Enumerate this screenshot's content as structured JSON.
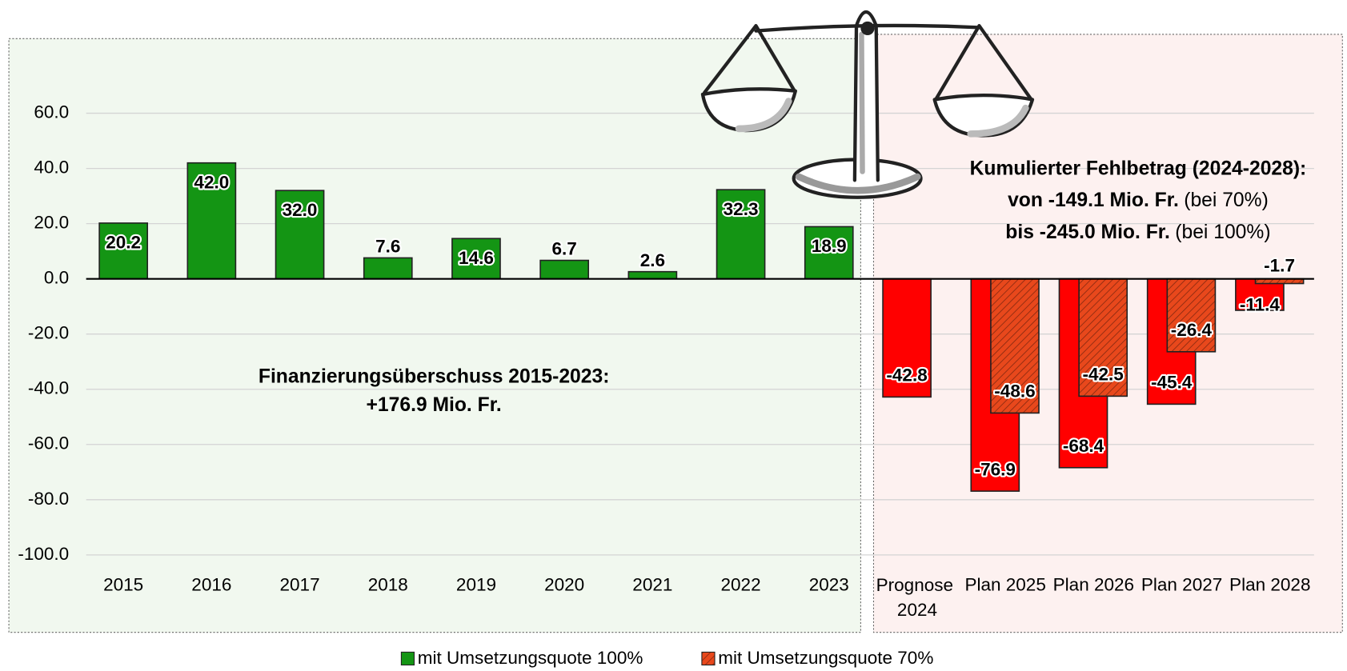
{
  "chart_data": {
    "type": "bar",
    "categories": [
      "2015",
      "2016",
      "2017",
      "2018",
      "2019",
      "2020",
      "2021",
      "2022",
      "2023",
      "Prognose 2024",
      "Plan 2025",
      "Plan 2026",
      "Plan 2027",
      "Plan 2028"
    ],
    "series": [
      {
        "name": "mit Umsetzungsquote 100%",
        "color": "#149514",
        "negative_color": "#ff0000",
        "values": [
          20.2,
          42.0,
          32.0,
          7.6,
          14.6,
          6.7,
          2.6,
          32.3,
          18.9,
          -42.8,
          -76.9,
          -68.4,
          -45.4,
          -11.4
        ],
        "value_labels": [
          "20.2",
          "42.0",
          "32.0",
          "7.6",
          "14.6",
          "6.7",
          "2.6",
          "32.3",
          "18.9",
          "-42.8",
          "-76.9",
          "-68.4",
          "-45.4",
          "-11.4"
        ]
      },
      {
        "name": "mit Umsetzungsquote 70%",
        "color": "#e8481c",
        "hatched": true,
        "values": [
          null,
          null,
          null,
          null,
          null,
          null,
          null,
          null,
          null,
          null,
          -48.6,
          -42.5,
          -26.4,
          -1.7
        ],
        "value_labels": [
          null,
          null,
          null,
          null,
          null,
          null,
          null,
          null,
          null,
          null,
          "-48.6",
          "-42.5",
          "-26.4",
          "-1.7"
        ]
      }
    ],
    "ylim": [
      -100,
      80
    ],
    "yticks": [
      {
        "value": -100,
        "label": "-100.0"
      },
      {
        "value": -80,
        "label": "-80.0"
      },
      {
        "value": -60,
        "label": "-60.0"
      },
      {
        "value": -40,
        "label": "-40.0"
      },
      {
        "value": -20,
        "label": "-20.0"
      },
      {
        "value": 0,
        "label": "0.0"
      },
      {
        "value": 20,
        "label": "20.0"
      },
      {
        "value": 40,
        "label": "40.0"
      },
      {
        "value": 60,
        "label": "60.0"
      }
    ],
    "grid": true,
    "legend": "bottom",
    "annotations": {
      "left": [
        "Finanzierungsüberschuss 2015-2023:",
        "+176.9 Mio. Fr."
      ],
      "right": [
        {
          "bold": "Kumulierter Fehlbetrag (2024-2028):"
        },
        {
          "bold": "von -149.1 Mio. Fr.",
          "normal": "(bei 70%)"
        },
        {
          "bold": "bis -245.0 Mio. Fr.",
          "normal": "(bei 100%)"
        }
      ]
    }
  }
}
